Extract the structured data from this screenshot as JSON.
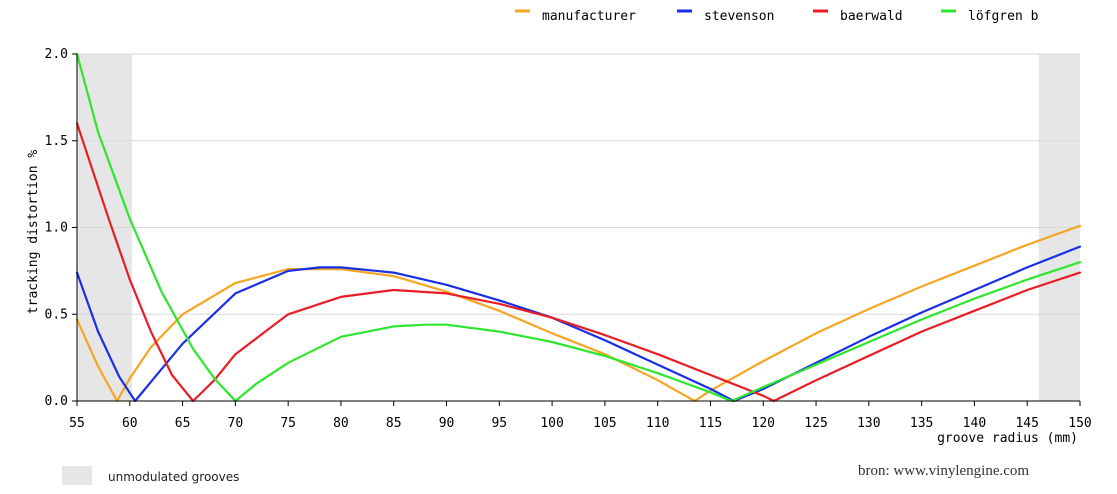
{
  "chart_data": {
    "type": "line",
    "xlabel": "groove radius (mm)",
    "ylabel": "tracking distortion %",
    "xlim": [
      55,
      150
    ],
    "ylim": [
      0,
      2.0
    ],
    "x_ticks": [
      "55",
      "60",
      "65",
      "70",
      "75",
      "80",
      "85",
      "90",
      "95",
      "100",
      "105",
      "110",
      "115",
      "120",
      "125",
      "130",
      "135",
      "140",
      "145",
      "150"
    ],
    "y_ticks": [
      "0.0",
      "0.5",
      "1.0",
      "1.5",
      "2.0"
    ],
    "grid": true,
    "legend_position": "top-right",
    "shaded_regions": [
      [
        55,
        60.2
      ],
      [
        146.1,
        150
      ]
    ],
    "series": [
      {
        "name": "manufacturer",
        "color": "#f5a623",
        "x": [
          55,
          57,
          58.8,
          60,
          62,
          65,
          70,
          75,
          80,
          85,
          90,
          95,
          100,
          105,
          110,
          113.5,
          115,
          120,
          125,
          130,
          135,
          140,
          145,
          150
        ],
        "values": [
          0.47,
          0.2,
          0.0,
          0.13,
          0.31,
          0.5,
          0.68,
          0.76,
          0.76,
          0.72,
          0.63,
          0.52,
          0.39,
          0.27,
          0.12,
          0.0,
          0.06,
          0.23,
          0.39,
          0.53,
          0.66,
          0.78,
          0.9,
          1.01
        ]
      },
      {
        "name": "stevenson",
        "color": "#1a2ee6",
        "x": [
          55,
          57,
          59,
          60.5,
          62,
          65,
          70,
          75,
          78,
          80,
          85,
          90,
          95,
          100,
          105,
          110,
          115,
          117.2,
          120,
          125,
          130,
          135,
          140,
          145,
          150
        ],
        "values": [
          0.74,
          0.4,
          0.14,
          0.0,
          0.11,
          0.33,
          0.62,
          0.75,
          0.77,
          0.77,
          0.74,
          0.67,
          0.58,
          0.48,
          0.35,
          0.21,
          0.07,
          0.0,
          0.07,
          0.22,
          0.37,
          0.51,
          0.64,
          0.77,
          0.89
        ]
      },
      {
        "name": "baerwald",
        "color": "#e81e24",
        "x": [
          55,
          58,
          60,
          62,
          64,
          66,
          68,
          70,
          75,
          80,
          85,
          90,
          95,
          100,
          105,
          110,
          115,
          120,
          121,
          125,
          130,
          135,
          140,
          145,
          150
        ],
        "values": [
          1.6,
          1.05,
          0.7,
          0.4,
          0.15,
          0.0,
          0.12,
          0.27,
          0.5,
          0.6,
          0.64,
          0.62,
          0.56,
          0.48,
          0.38,
          0.27,
          0.15,
          0.03,
          0.0,
          0.12,
          0.26,
          0.4,
          0.52,
          0.64,
          0.74
        ]
      },
      {
        "name": "löfgren b",
        "color": "#2de62d",
        "x": [
          55,
          57,
          60,
          63,
          66,
          68,
          70,
          72,
          75,
          80,
          85,
          88,
          90,
          95,
          100,
          105,
          110,
          115,
          117,
          120,
          125,
          130,
          135,
          140,
          145,
          150
        ],
        "values": [
          2.0,
          1.55,
          1.05,
          0.63,
          0.3,
          0.13,
          0.0,
          0.1,
          0.22,
          0.37,
          0.43,
          0.44,
          0.44,
          0.4,
          0.34,
          0.26,
          0.16,
          0.05,
          0.0,
          0.08,
          0.21,
          0.34,
          0.47,
          0.59,
          0.7,
          0.8
        ]
      }
    ]
  },
  "legend": {
    "items": [
      {
        "label": "manufacturer",
        "color": "#f5a623"
      },
      {
        "label": "stevenson",
        "color": "#1a2ee6"
      },
      {
        "label": "baerwald",
        "color": "#e81e24"
      },
      {
        "label": "löfgren b",
        "color": "#2de62d"
      }
    ]
  },
  "footnote": {
    "label": "unmodulated grooves"
  },
  "source": "bron: www.vinylengine.com"
}
